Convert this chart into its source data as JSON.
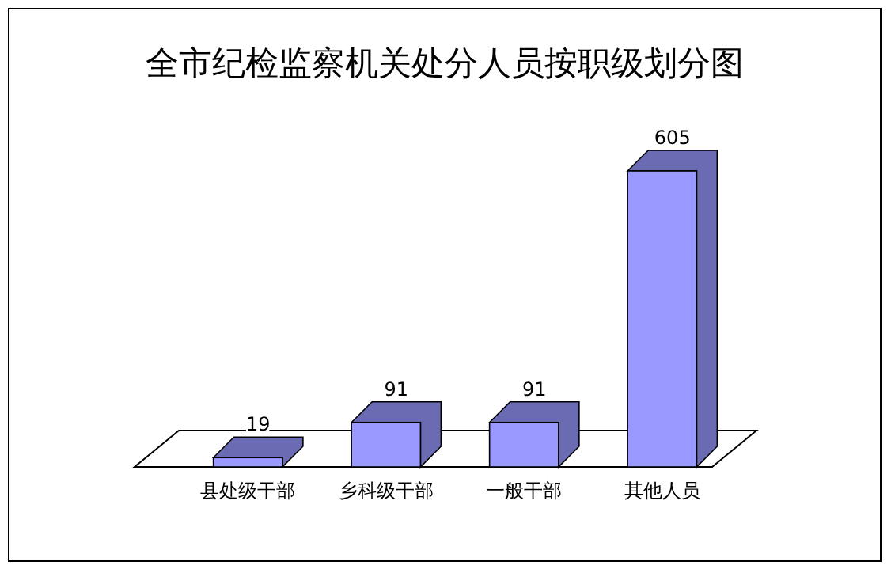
{
  "chart_data": {
    "type": "bar",
    "title": "全市纪检监察机关处分人员按职级划分图",
    "categories": [
      "县处级干部",
      "乡科级干部",
      "一般干部",
      "其他人员"
    ],
    "values": [
      19,
      91,
      91,
      605
    ],
    "color": "#9999ff",
    "data_labels": true
  }
}
